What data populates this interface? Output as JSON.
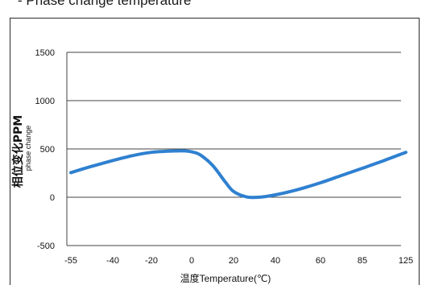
{
  "section_title": "- Phase change temperature",
  "chart_data": {
    "type": "line",
    "xlabel": "温度Temperature(℃)",
    "ylabel": "相位变化PPM",
    "ylabel_sub": "phase change",
    "x_tick_labels": [
      "-55",
      "-40",
      "-20",
      "0",
      "20",
      "40",
      "60",
      "85",
      "125"
    ],
    "y_tick_labels": [
      "1500",
      "1000",
      "500",
      "0",
      "-500"
    ],
    "y_ticks": [
      1500,
      1000,
      500,
      0,
      -500
    ],
    "ylim": [
      -500,
      1500
    ],
    "grid": "horizontal",
    "line_color": "#2f80d0",
    "series": [
      {
        "x_index": [
          0,
          0.5,
          1,
          1.5,
          2,
          2.5,
          2.8,
          3.0,
          3.2,
          3.5,
          3.8,
          4.0,
          4.3,
          4.6,
          5.0,
          5.5,
          6.0,
          6.5,
          7.0,
          7.5,
          8.0
        ],
        "values": [
          255,
          320,
          380,
          430,
          465,
          478,
          480,
          470,
          440,
          330,
          160,
          60,
          5,
          0,
          25,
          80,
          150,
          225,
          300,
          380,
          465
        ]
      }
    ]
  }
}
